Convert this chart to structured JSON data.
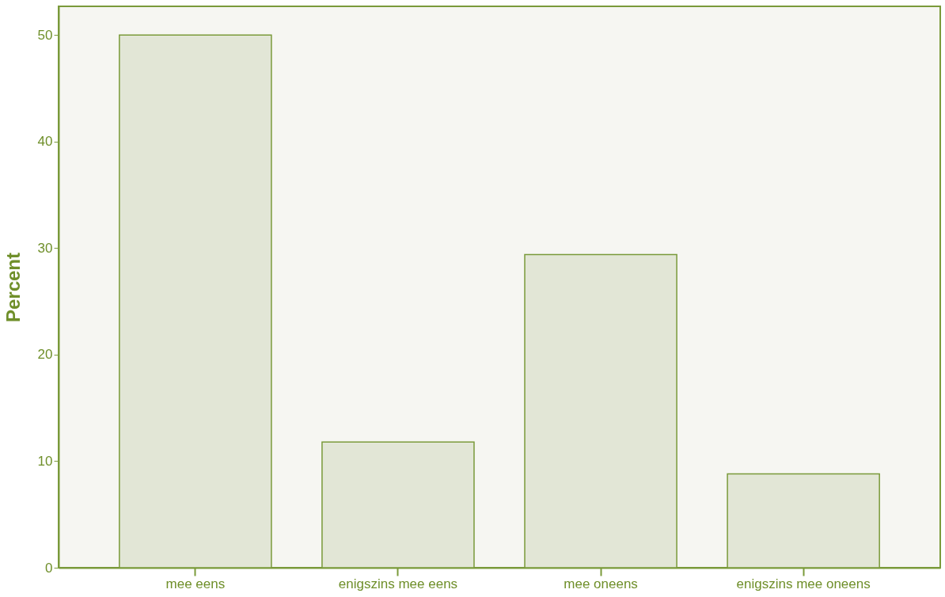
{
  "chart_data": {
    "type": "bar",
    "ylabel": "Percent",
    "categories": [
      "mee eens",
      "enigszins mee eens",
      "mee oneens",
      "enigszins mee oneens"
    ],
    "values": [
      50.0,
      11.8,
      29.4,
      8.8
    ],
    "color": "#e2e6d6",
    "ylim": [
      0,
      52.7
    ],
    "yticks": [
      0,
      10,
      20,
      30,
      40,
      50
    ],
    "grid": false
  }
}
